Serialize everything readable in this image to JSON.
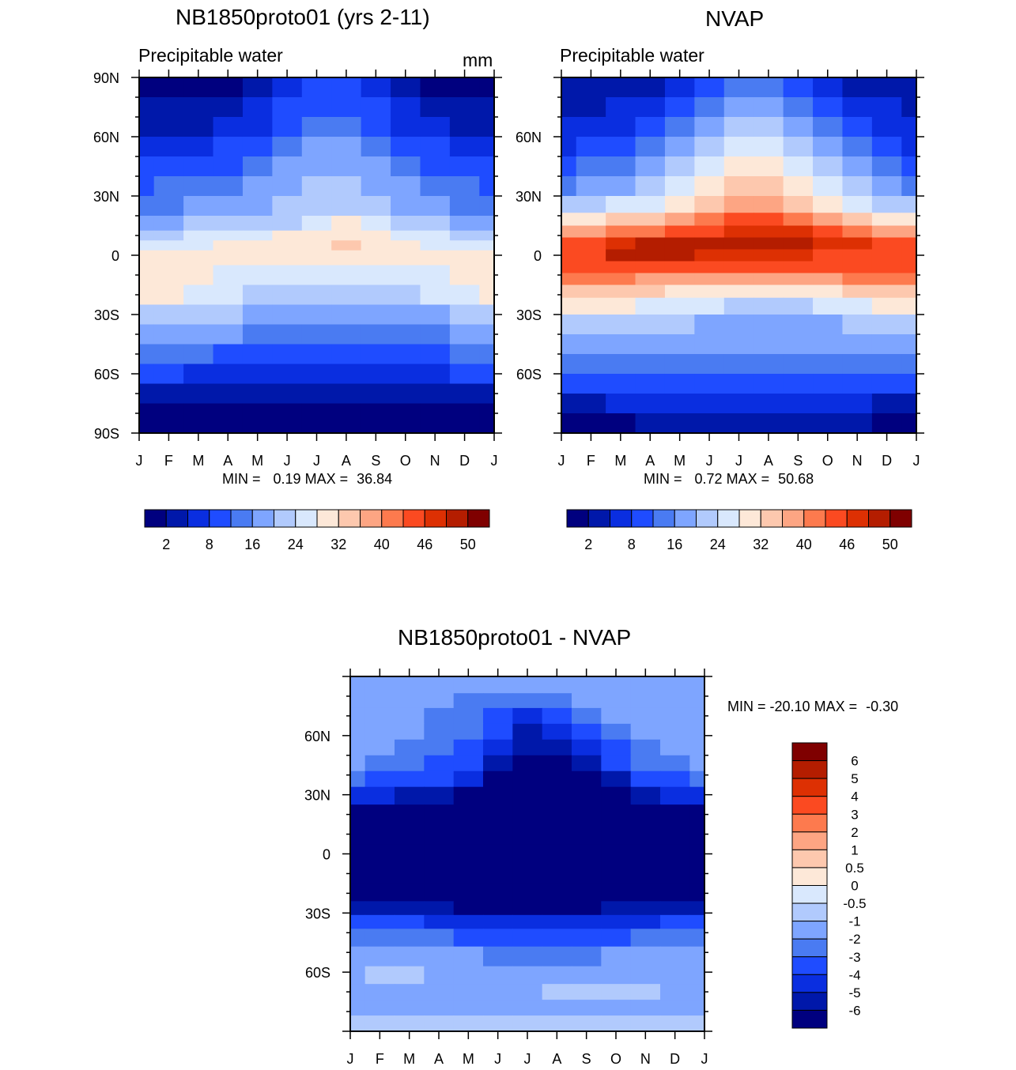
{
  "colors": {
    "scale": [
      "#00007f",
      "#0018aa",
      "#0a2ee0",
      "#1f4cff",
      "#4a7bf2",
      "#7ea5ff",
      "#b1cafd",
      "#d9e8fd",
      "#fde8d8",
      "#fdc8ae",
      "#fda583",
      "#fd7a4e",
      "#fb4a21",
      "#dd3003",
      "#b41d00",
      "#7f0000"
    ]
  },
  "chart_data": [
    {
      "type": "heatmap",
      "id": "model",
      "title": "NB1850proto01 (yrs 2-11)",
      "subtitle": "Precipitable water",
      "units": "mm",
      "x_ticks": [
        "J",
        "F",
        "M",
        "A",
        "M",
        "J",
        "J",
        "A",
        "S",
        "O",
        "N",
        "D",
        "J"
      ],
      "y_ticks": [
        "90N",
        "60N",
        "30N",
        "0",
        "30S",
        "60S",
        "90S"
      ],
      "ylim": [
        -90,
        90
      ],
      "min_label": "MIN =",
      "min_value": "0.19",
      "max_label": "MAX =",
      "max_value": "36.84",
      "colorbar_labels": [
        "2",
        "8",
        "16",
        "24",
        "32",
        "40",
        "46",
        "50"
      ],
      "rows": [
        {
          "lat": 85,
          "levels": [
            0,
            0,
            0,
            0,
            1,
            2,
            3,
            3,
            2,
            1,
            0,
            0,
            0
          ]
        },
        {
          "lat": 75,
          "levels": [
            1,
            1,
            1,
            1,
            2,
            3,
            3,
            3,
            3,
            2,
            1,
            1,
            1
          ]
        },
        {
          "lat": 65,
          "levels": [
            1,
            1,
            1,
            2,
            2,
            3,
            4,
            4,
            3,
            2,
            2,
            1,
            1
          ]
        },
        {
          "lat": 55,
          "levels": [
            2,
            2,
            2,
            3,
            3,
            4,
            5,
            5,
            4,
            3,
            3,
            2,
            2
          ]
        },
        {
          "lat": 45,
          "levels": [
            3,
            3,
            3,
            3,
            4,
            5,
            5,
            5,
            5,
            4,
            3,
            3,
            3
          ]
        },
        {
          "lat": 35,
          "levels": [
            3,
            4,
            4,
            4,
            5,
            5,
            6,
            6,
            5,
            5,
            4,
            4,
            3
          ]
        },
        {
          "lat": 25,
          "levels": [
            4,
            4,
            5,
            5,
            5,
            6,
            6,
            6,
            6,
            5,
            5,
            4,
            4
          ]
        },
        {
          "lat": 15,
          "levels": [
            5,
            5,
            6,
            6,
            6,
            6,
            7,
            8,
            7,
            6,
            6,
            5,
            5
          ]
        },
        {
          "lat": 10,
          "levels": [
            6,
            6,
            7,
            7,
            7,
            8,
            8,
            8,
            8,
            7,
            7,
            6,
            6
          ]
        },
        {
          "lat": 5,
          "levels": [
            7,
            7,
            7,
            8,
            8,
            8,
            8,
            9,
            8,
            8,
            7,
            7,
            7
          ]
        },
        {
          "lat": 0,
          "levels": [
            8,
            8,
            8,
            8,
            8,
            8,
            8,
            8,
            8,
            8,
            8,
            8,
            8
          ]
        },
        {
          "lat": -10,
          "levels": [
            8,
            8,
            8,
            7,
            7,
            7,
            7,
            7,
            7,
            7,
            7,
            8,
            8
          ]
        },
        {
          "lat": -20,
          "levels": [
            8,
            8,
            7,
            7,
            6,
            6,
            6,
            6,
            6,
            6,
            7,
            7,
            8
          ]
        },
        {
          "lat": -30,
          "levels": [
            6,
            6,
            6,
            6,
            5,
            5,
            5,
            5,
            5,
            5,
            5,
            6,
            6
          ]
        },
        {
          "lat": -40,
          "levels": [
            5,
            5,
            5,
            5,
            4,
            4,
            4,
            4,
            4,
            4,
            4,
            5,
            5
          ]
        },
        {
          "lat": -50,
          "levels": [
            4,
            4,
            4,
            3,
            3,
            3,
            3,
            3,
            3,
            3,
            3,
            4,
            4
          ]
        },
        {
          "lat": -60,
          "levels": [
            3,
            3,
            2,
            2,
            2,
            2,
            2,
            2,
            2,
            2,
            2,
            3,
            3
          ]
        },
        {
          "lat": -70,
          "levels": [
            1,
            1,
            1,
            1,
            1,
            1,
            1,
            1,
            1,
            1,
            1,
            1,
            1
          ]
        },
        {
          "lat": -80,
          "levels": [
            0,
            0,
            0,
            0,
            0,
            0,
            0,
            0,
            0,
            0,
            0,
            0,
            0
          ]
        },
        {
          "lat": -88,
          "levels": [
            0,
            0,
            0,
            0,
            0,
            0,
            0,
            0,
            0,
            0,
            0,
            0,
            0
          ]
        }
      ]
    },
    {
      "type": "heatmap",
      "id": "obs",
      "title": "NVAP",
      "subtitle": "Precipitable water",
      "x_ticks": [
        "J",
        "F",
        "M",
        "A",
        "M",
        "J",
        "J",
        "A",
        "S",
        "O",
        "N",
        "D",
        "J"
      ],
      "y_ticks": [
        "60N",
        "30N",
        "0",
        "30S",
        "60S"
      ],
      "ylim": [
        -90,
        90
      ],
      "min_label": "MIN =",
      "min_value": "0.72",
      "max_label": "MAX =",
      "max_value": "50.68",
      "colorbar_labels": [
        "2",
        "8",
        "16",
        "24",
        "32",
        "40",
        "46",
        "50"
      ],
      "rows": [
        {
          "lat": 85,
          "levels": [
            1,
            1,
            1,
            1,
            2,
            3,
            4,
            4,
            3,
            2,
            1,
            1,
            1
          ]
        },
        {
          "lat": 75,
          "levels": [
            1,
            1,
            2,
            2,
            3,
            4,
            5,
            5,
            4,
            3,
            2,
            2,
            1
          ]
        },
        {
          "lat": 65,
          "levels": [
            2,
            2,
            2,
            3,
            4,
            5,
            6,
            6,
            5,
            4,
            3,
            2,
            2
          ]
        },
        {
          "lat": 55,
          "levels": [
            2,
            3,
            3,
            4,
            5,
            6,
            7,
            7,
            6,
            5,
            4,
            3,
            2
          ]
        },
        {
          "lat": 45,
          "levels": [
            3,
            4,
            4,
            5,
            6,
            7,
            8,
            8,
            7,
            6,
            5,
            4,
            3
          ]
        },
        {
          "lat": 35,
          "levels": [
            4,
            5,
            5,
            6,
            7,
            8,
            9,
            9,
            8,
            7,
            6,
            5,
            4
          ]
        },
        {
          "lat": 25,
          "levels": [
            6,
            6,
            7,
            7,
            8,
            9,
            10,
            10,
            9,
            8,
            7,
            6,
            6
          ]
        },
        {
          "lat": 18,
          "levels": [
            8,
            8,
            9,
            9,
            10,
            11,
            12,
            12,
            11,
            10,
            9,
            8,
            8
          ]
        },
        {
          "lat": 12,
          "levels": [
            10,
            10,
            11,
            11,
            12,
            12,
            13,
            13,
            13,
            12,
            11,
            10,
            10
          ]
        },
        {
          "lat": 6,
          "levels": [
            12,
            12,
            13,
            14,
            14,
            14,
            14,
            14,
            14,
            13,
            13,
            12,
            12
          ]
        },
        {
          "lat": 0,
          "levels": [
            12,
            12,
            14,
            14,
            14,
            13,
            13,
            13,
            13,
            12,
            12,
            12,
            12
          ]
        },
        {
          "lat": -6,
          "levels": [
            12,
            12,
            12,
            12,
            12,
            12,
            12,
            12,
            12,
            12,
            12,
            12,
            12
          ]
        },
        {
          "lat": -12,
          "levels": [
            11,
            11,
            11,
            10,
            10,
            10,
            10,
            10,
            10,
            10,
            11,
            11,
            11
          ]
        },
        {
          "lat": -18,
          "levels": [
            9,
            9,
            9,
            9,
            8,
            8,
            8,
            8,
            8,
            8,
            9,
            9,
            9
          ]
        },
        {
          "lat": -25,
          "levels": [
            8,
            8,
            8,
            7,
            7,
            7,
            6,
            6,
            6,
            7,
            7,
            8,
            8
          ]
        },
        {
          "lat": -35,
          "levels": [
            6,
            6,
            6,
            6,
            6,
            5,
            5,
            5,
            5,
            5,
            6,
            6,
            6
          ]
        },
        {
          "lat": -45,
          "levels": [
            5,
            5,
            5,
            5,
            5,
            5,
            5,
            5,
            5,
            5,
            5,
            5,
            5
          ]
        },
        {
          "lat": -55,
          "levels": [
            4,
            4,
            4,
            4,
            4,
            4,
            4,
            4,
            4,
            4,
            4,
            4,
            4
          ]
        },
        {
          "lat": -65,
          "levels": [
            3,
            3,
            3,
            3,
            3,
            3,
            3,
            3,
            3,
            3,
            3,
            3,
            3
          ]
        },
        {
          "lat": -75,
          "levels": [
            1,
            1,
            2,
            2,
            2,
            2,
            2,
            2,
            2,
            2,
            2,
            1,
            1
          ]
        },
        {
          "lat": -85,
          "levels": [
            0,
            0,
            0,
            1,
            1,
            1,
            1,
            1,
            1,
            1,
            1,
            0,
            0
          ]
        }
      ]
    },
    {
      "type": "heatmap",
      "id": "diff",
      "title": "NB1850proto01 - NVAP",
      "x_ticks": [
        "J",
        "F",
        "M",
        "A",
        "M",
        "J",
        "J",
        "A",
        "S",
        "O",
        "N",
        "D",
        "J"
      ],
      "y_ticks": [
        "60N",
        "30N",
        "0",
        "30S",
        "60S"
      ],
      "ylim": [
        -90,
        90
      ],
      "min_label": "MIN =",
      "min_value": "-20.10",
      "max_label": "MAX =",
      "max_value": "-0.30",
      "colorbar_labels": [
        "6",
        "5",
        "4",
        "3",
        "2",
        "1",
        "0.5",
        "0",
        "-0.5",
        "-1",
        "-2",
        "-3",
        "-4",
        "-5",
        "-6"
      ],
      "colorbar_colors": [
        "#7f0000",
        "#b41d00",
        "#dd3003",
        "#fb4a21",
        "#fd7a4e",
        "#fda583",
        "#fdc8ae",
        "#fde8d8",
        "#d9e8fd",
        "#b1cafd",
        "#7ea5ff",
        "#4a7bf2",
        "#1f4cff",
        "#0a2ee0",
        "#0018aa",
        "#00007f"
      ],
      "rows": [
        {
          "lat": 85,
          "levels": [
            5,
            5,
            5,
            5,
            5,
            5,
            5,
            5,
            5,
            5,
            5,
            5,
            5
          ]
        },
        {
          "lat": 78,
          "levels": [
            5,
            5,
            5,
            5,
            4,
            4,
            4,
            4,
            5,
            5,
            5,
            5,
            5
          ]
        },
        {
          "lat": 70,
          "levels": [
            5,
            5,
            5,
            4,
            4,
            3,
            2,
            3,
            4,
            5,
            5,
            5,
            5
          ]
        },
        {
          "lat": 62,
          "levels": [
            5,
            5,
            5,
            4,
            4,
            3,
            1,
            2,
            3,
            4,
            5,
            5,
            5
          ]
        },
        {
          "lat": 54,
          "levels": [
            5,
            5,
            4,
            4,
            3,
            2,
            1,
            1,
            2,
            3,
            4,
            5,
            5
          ]
        },
        {
          "lat": 46,
          "levels": [
            5,
            4,
            4,
            3,
            3,
            1,
            0,
            0,
            1,
            3,
            4,
            4,
            5
          ]
        },
        {
          "lat": 38,
          "levels": [
            4,
            3,
            3,
            3,
            2,
            0,
            0,
            0,
            0,
            1,
            3,
            3,
            4
          ]
        },
        {
          "lat": 30,
          "levels": [
            2,
            2,
            1,
            1,
            0,
            0,
            0,
            0,
            0,
            0,
            1,
            2,
            2
          ]
        },
        {
          "lat": 20,
          "levels": [
            0,
            0,
            0,
            0,
            0,
            0,
            0,
            0,
            0,
            0,
            0,
            0,
            0
          ]
        },
        {
          "lat": 10,
          "levels": [
            0,
            0,
            0,
            0,
            0,
            0,
            0,
            0,
            0,
            0,
            0,
            0,
            0
          ]
        },
        {
          "lat": 0,
          "levels": [
            0,
            0,
            0,
            0,
            0,
            0,
            0,
            0,
            0,
            0,
            0,
            0,
            0
          ]
        },
        {
          "lat": -10,
          "levels": [
            0,
            0,
            0,
            0,
            0,
            0,
            0,
            0,
            0,
            0,
            0,
            0,
            0
          ]
        },
        {
          "lat": -20,
          "levels": [
            0,
            0,
            0,
            0,
            0,
            0,
            0,
            0,
            0,
            0,
            0,
            0,
            0
          ]
        },
        {
          "lat": -28,
          "levels": [
            1,
            1,
            1,
            1,
            0,
            0,
            0,
            0,
            0,
            1,
            1,
            1,
            1
          ]
        },
        {
          "lat": -34,
          "levels": [
            3,
            3,
            3,
            2,
            2,
            2,
            2,
            2,
            2,
            2,
            2,
            3,
            3
          ]
        },
        {
          "lat": -42,
          "levels": [
            4,
            4,
            4,
            4,
            3,
            3,
            3,
            3,
            3,
            3,
            4,
            4,
            4
          ]
        },
        {
          "lat": -52,
          "levels": [
            5,
            5,
            5,
            5,
            5,
            4,
            4,
            4,
            4,
            5,
            5,
            5,
            5
          ]
        },
        {
          "lat": -62,
          "levels": [
            5,
            6,
            6,
            5,
            5,
            5,
            5,
            5,
            5,
            5,
            5,
            5,
            5
          ]
        },
        {
          "lat": -70,
          "levels": [
            5,
            5,
            5,
            5,
            5,
            5,
            5,
            6,
            6,
            6,
            6,
            5,
            5
          ]
        },
        {
          "lat": -78,
          "levels": [
            5,
            5,
            5,
            5,
            5,
            5,
            5,
            5,
            5,
            5,
            5,
            5,
            5
          ]
        },
        {
          "lat": -86,
          "levels": [
            6,
            6,
            6,
            6,
            6,
            6,
            6,
            6,
            6,
            6,
            6,
            6,
            6
          ]
        }
      ]
    }
  ]
}
